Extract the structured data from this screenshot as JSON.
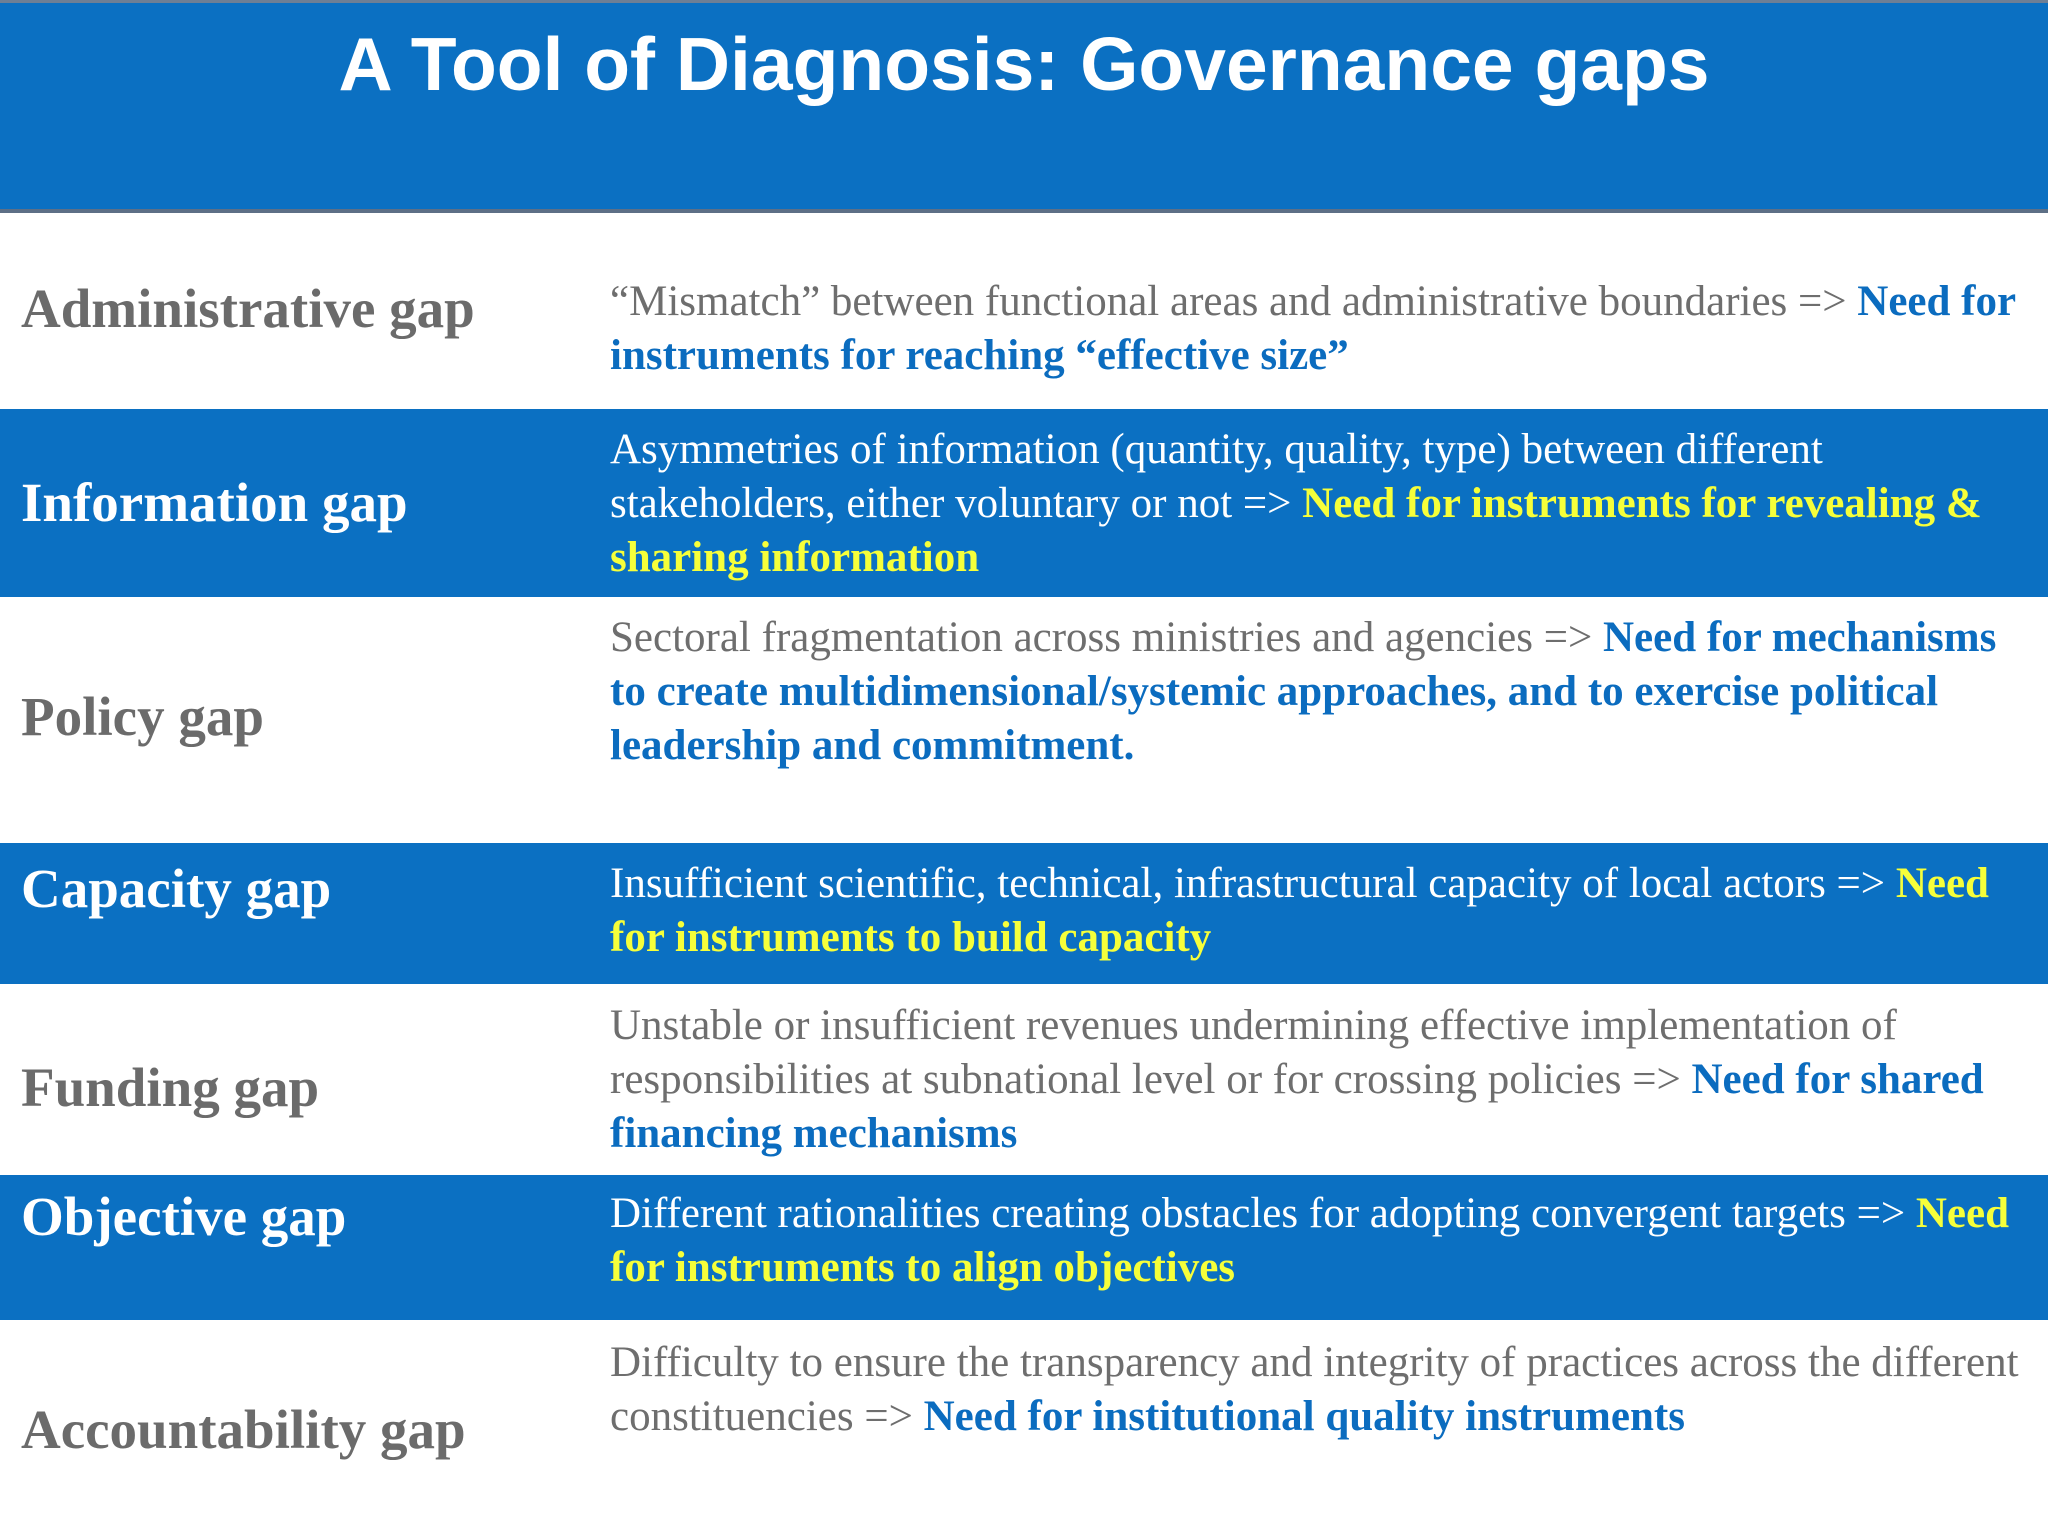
{
  "title": "A Tool of Diagnosis: Governance gaps",
  "colors": {
    "brand_blue": "#0b70c2",
    "need_text_on_white": "#0b6cbf",
    "need_text_on_blue": "#f6ff3a",
    "label_gray": "#6b6b6b"
  },
  "gaps": [
    {
      "label": "Administrative gap",
      "text": "“Mismatch” between functional areas and administrative boundaries =>",
      "need": "Need for instruments for reaching “effective size”"
    },
    {
      "label": "Information gap",
      "text": "Asymmetries of information (quantity, quality, type) between different stakeholders, either voluntary or not =>",
      "need": "Need for instruments for revealing & sharing information"
    },
    {
      "label": "Policy gap",
      "text": "Sectoral fragmentation across ministries and agencies =>",
      "need": "Need for mechanisms to create multidimensional/systemic approaches, and to exercise political leadership and commitment."
    },
    {
      "label": "Capacity gap",
      "text": "Insufficient scientific, technical, infrastructural capacity of local actors =>",
      "need": "Need for instruments to build capacity"
    },
    {
      "label": "Funding gap",
      "text": "Unstable or insufficient revenues undermining effective implementation of responsibilities at subnational level or for crossing policies =>",
      "need": "Need for shared financing mechanisms"
    },
    {
      "label": "Objective gap",
      "text": "Different rationalities creating obstacles for adopting convergent targets  =>",
      "need": "Need for instruments to align objectives"
    },
    {
      "label": "Accountability gap",
      "text": "Difficulty to ensure the transparency and integrity of practices across the different constituencies =>",
      "need": "Need for institutional quality instruments"
    }
  ]
}
